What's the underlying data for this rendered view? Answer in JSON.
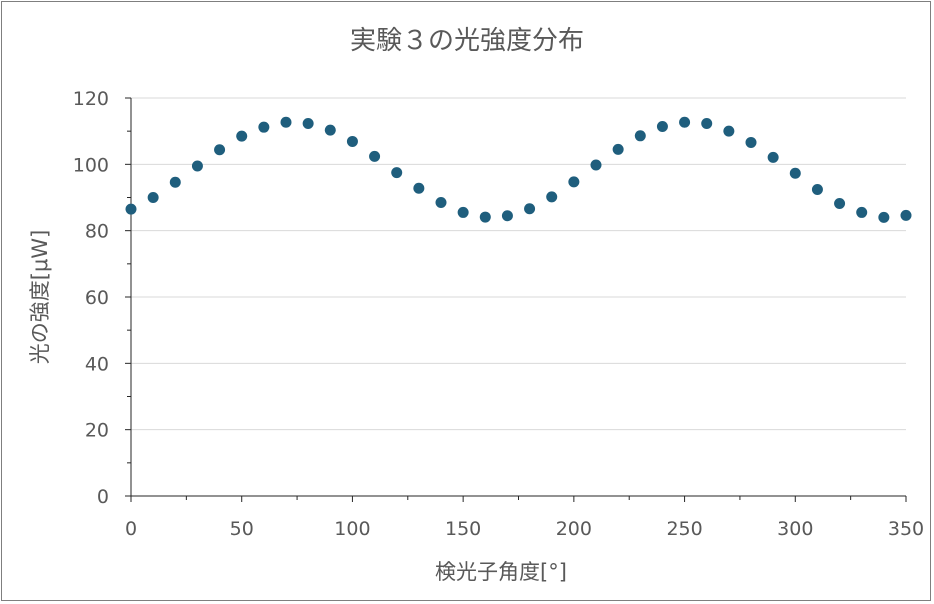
{
  "chart_data": {
    "type": "scatter",
    "title": "実験３の光強度分布",
    "xlabel": "検光子角度[°]",
    "ylabel": "光の強度[μW]",
    "xlim": [
      0,
      350
    ],
    "ylim": [
      0,
      120
    ],
    "xticks": [
      "0",
      "50",
      "100",
      "150",
      "200",
      "250",
      "300",
      "350"
    ],
    "yticks": [
      "0",
      "20",
      "40",
      "60",
      "80",
      "100",
      "120"
    ],
    "grid": "horizontal",
    "marker_color": "#1f5e7d",
    "series": [
      {
        "x": [
          0,
          10,
          20,
          30,
          40,
          50,
          60,
          70,
          80,
          90,
          100,
          110,
          120,
          130,
          140,
          150,
          160,
          170,
          180,
          190,
          200,
          210,
          220,
          230,
          240,
          250,
          260,
          270,
          280,
          290,
          300,
          310,
          320,
          330,
          340,
          350
        ],
        "y": [
          86.5,
          90.0,
          94.6,
          99.5,
          104.4,
          108.5,
          111.2,
          112.7,
          112.3,
          110.3,
          106.9,
          102.4,
          97.5,
          92.8,
          88.5,
          85.5,
          84.1,
          84.5,
          86.6,
          90.2,
          94.7,
          99.8,
          104.5,
          108.6,
          111.4,
          112.7,
          112.3,
          110.0,
          106.6,
          102.1,
          97.3,
          92.4,
          88.2,
          85.5,
          84.0,
          84.6
        ]
      }
    ]
  }
}
